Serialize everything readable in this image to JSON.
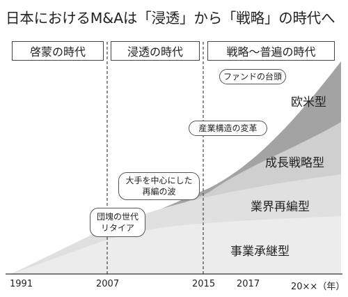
{
  "title": "日本におけるM&Aは「浸透」から「戦略」の時代へ",
  "eras": [
    {
      "label": "啓蒙の時代"
    },
    {
      "label": "浸透の時代"
    },
    {
      "label": "戦略〜普遍の時代"
    }
  ],
  "callouts": {
    "fund": "ファンドの台頭",
    "industry": "産業構造の変革",
    "realign_line1": "大手を中心にした",
    "realign_line2": "再編の波",
    "retire_line1": "団塊の世代",
    "retire_line2": "リタイア"
  },
  "layers": [
    {
      "label": "事業承継型",
      "color": "#ececec"
    },
    {
      "label": "業界再編型",
      "color": "#e0e0e0"
    },
    {
      "label": "成長戦略型",
      "color": "#cfcfcf"
    },
    {
      "label": "欧米型",
      "color": "#a3a3a3"
    }
  ],
  "years": [
    "1991",
    "2007",
    "2015",
    "2017",
    "20××（年）"
  ]
}
